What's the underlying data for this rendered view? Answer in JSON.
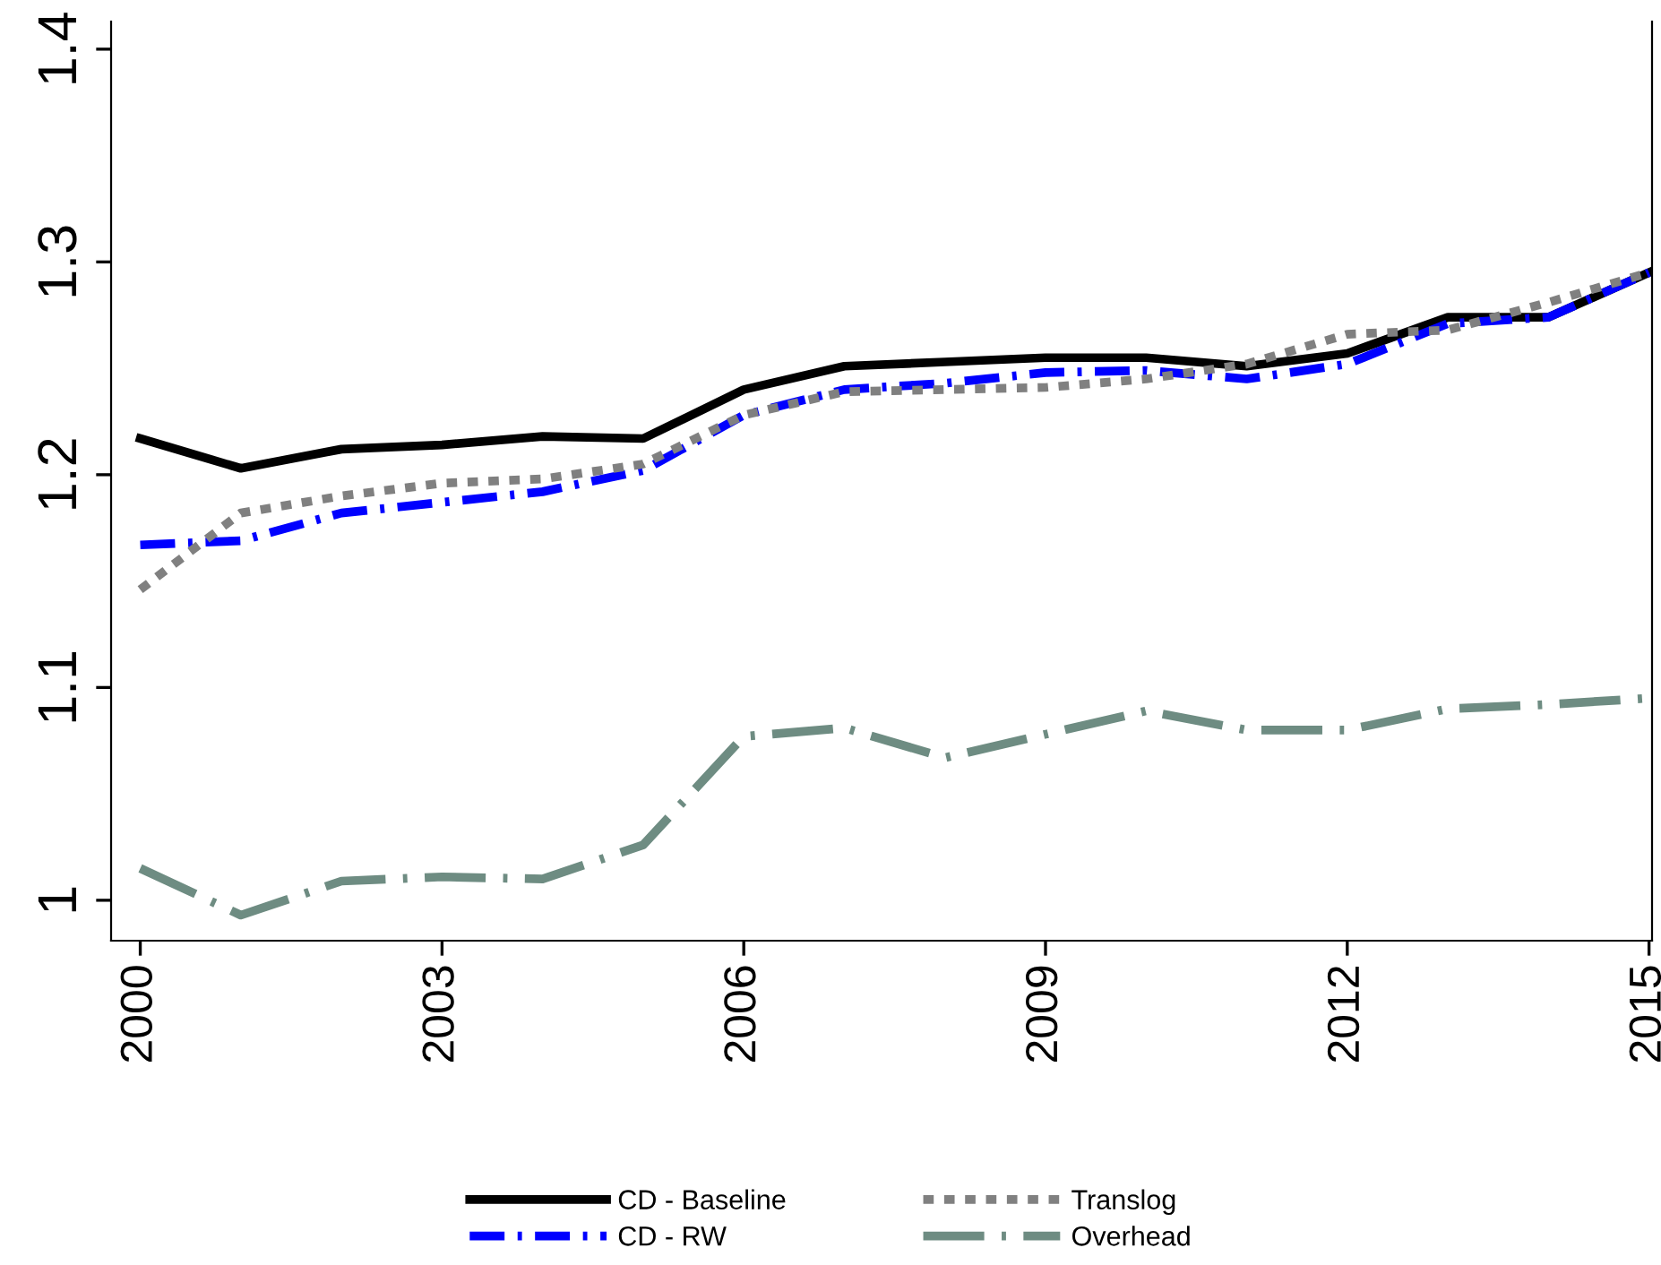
{
  "chart_data": {
    "type": "line",
    "x": [
      2000,
      2001,
      2002,
      2003,
      2004,
      2005,
      2006,
      2007,
      2008,
      2009,
      2010,
      2011,
      2012,
      2013,
      2014,
      2015
    ],
    "series": [
      {
        "name": "CD - Baseline",
        "color": "#000000",
        "line_style": "solid",
        "values": [
          1.217,
          1.203,
          1.212,
          1.214,
          1.218,
          1.217,
          1.24,
          1.251,
          1.253,
          1.255,
          1.255,
          1.251,
          1.257,
          1.274,
          1.274,
          1.295
        ]
      },
      {
        "name": "CD - RW",
        "color": "#0000ff",
        "line_style": "dashdot",
        "values": [
          1.167,
          1.169,
          1.182,
          1.187,
          1.192,
          1.202,
          1.228,
          1.24,
          1.243,
          1.248,
          1.249,
          1.245,
          1.252,
          1.271,
          1.274,
          1.295
        ]
      },
      {
        "name": "Translog",
        "color": "#808080",
        "line_style": "dotted",
        "values": [
          1.146,
          1.182,
          1.19,
          1.196,
          1.198,
          1.205,
          1.228,
          1.239,
          1.24,
          1.241,
          1.245,
          1.252,
          1.266,
          1.268,
          1.281,
          1.295
        ]
      },
      {
        "name": "Overhead",
        "color": "#6e8c82",
        "line_style": "longdashdot",
        "values": [
          1.015,
          0.993,
          1.009,
          1.011,
          1.01,
          1.026,
          1.077,
          1.081,
          1.067,
          1.078,
          1.089,
          1.08,
          1.08,
          1.09,
          1.092,
          1.095
        ]
      }
    ],
    "xlim": [
      1999.71,
      2015.03
    ],
    "xticks": [
      2000,
      2003,
      2006,
      2009,
      2012,
      2015
    ],
    "ylim": [
      0.981,
      1.413
    ],
    "yticks": [
      1,
      1.1,
      1.2,
      1.3,
      1.4
    ],
    "grid": false,
    "legend": "bottom",
    "marker": "none"
  }
}
